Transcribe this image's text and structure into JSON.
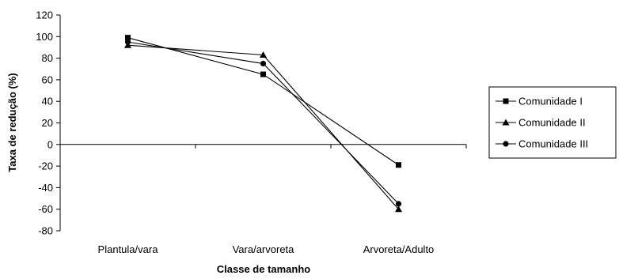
{
  "chart_data": {
    "type": "line",
    "title": "",
    "xlabel": "Classe de tamanho",
    "ylabel": "Taxa de redução (%)",
    "categories": [
      "Plantula/vara",
      "Vara/arvoreta",
      "Arvoreta/Adulto"
    ],
    "ylim": [
      -80,
      120
    ],
    "yticks": [
      "120",
      "100",
      "80",
      "60",
      "40",
      "20",
      "0",
      "-20",
      "-40",
      "-60",
      "-80"
    ],
    "grid": false,
    "legend_position": "right",
    "line_color": "#000000",
    "series": [
      {
        "name": "Comunidade I",
        "marker": "square",
        "values": [
          99,
          65,
          -19
        ]
      },
      {
        "name": "Comunidade II",
        "marker": "triangle",
        "values": [
          92,
          83,
          -60
        ]
      },
      {
        "name": "Comunidade III",
        "marker": "circle",
        "values": [
          95,
          75,
          -55
        ]
      }
    ]
  }
}
